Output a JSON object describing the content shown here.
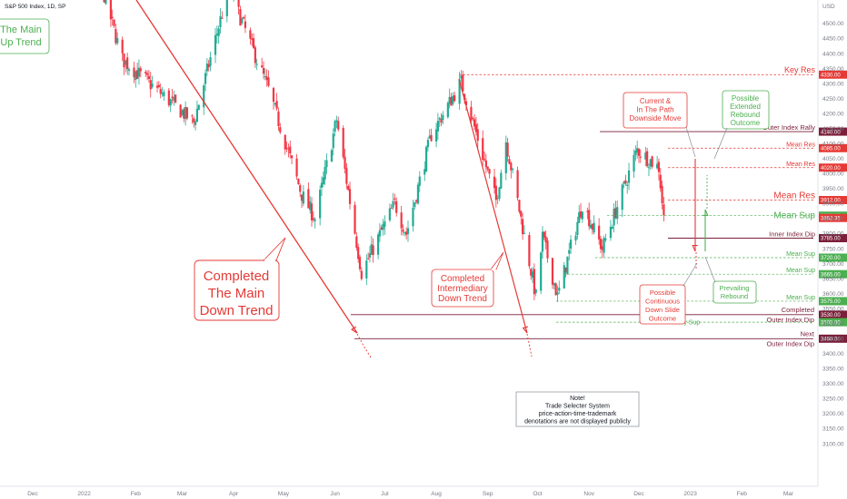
{
  "title": "S&P 500 Index, 1D, SP",
  "colors": {
    "up": "#22ab94",
    "down": "#f23645",
    "red": "#e53935",
    "green": "#4caf50",
    "maroon": "#7b1f3a",
    "grey": "#787b86"
  },
  "chart_data": {
    "type": "candlestick",
    "title": "S&P 500 Index, 1D, SP",
    "y_axis_label": "USD",
    "ylim": [
      3060,
      4620
    ],
    "grid": false,
    "yticks": [
      "4500.00",
      "4450.00",
      "4400.00",
      "4350.00",
      "4300.00",
      "4250.00",
      "4200.00",
      "4150.00",
      "4100.00",
      "4050.00",
      "4000.00",
      "3950.00",
      "3900.00",
      "3850.00",
      "3800.00",
      "3750.00",
      "3700.00",
      "3650.00",
      "3600.00",
      "3550.00",
      "3500.00",
      "3450.00",
      "3400.00",
      "3350.00",
      "3300.00",
      "3250.00",
      "3200.00",
      "3150.00",
      "3100.00"
    ],
    "xticks": [
      "Dec",
      "2022",
      "Feb",
      "Mar",
      "Apr",
      "May",
      "Jun",
      "Jul",
      "Aug",
      "Sep",
      "Oct",
      "Nov",
      "Dec",
      "2023",
      "Feb",
      "Mar"
    ],
    "price_anchors": [
      {
        "date": "2021-12-15",
        "close": 4640
      },
      {
        "date": "2022-01-03",
        "close": 4790
      },
      {
        "date": "2022-01-24",
        "close": 4380
      },
      {
        "date": "2022-02-24",
        "close": 4230
      },
      {
        "date": "2022-03-08",
        "close": 4170
      },
      {
        "date": "2022-03-29",
        "close": 4620
      },
      {
        "date": "2022-04-22",
        "close": 4280
      },
      {
        "date": "2022-05-12",
        "close": 3930
      },
      {
        "date": "2022-05-20",
        "close": 3850
      },
      {
        "date": "2022-06-02",
        "close": 4180
      },
      {
        "date": "2022-06-17",
        "close": 3670
      },
      {
        "date": "2022-07-07",
        "close": 3900
      },
      {
        "date": "2022-07-14",
        "close": 3800
      },
      {
        "date": "2022-07-29",
        "close": 4130
      },
      {
        "date": "2022-08-16",
        "close": 4305
      },
      {
        "date": "2022-09-06",
        "close": 3910
      },
      {
        "date": "2022-09-12",
        "close": 4110
      },
      {
        "date": "2022-09-30",
        "close": 3590
      },
      {
        "date": "2022-10-04",
        "close": 3790
      },
      {
        "date": "2022-10-13",
        "close": 3590
      },
      {
        "date": "2022-10-28",
        "close": 3900
      },
      {
        "date": "2022-11-09",
        "close": 3750
      },
      {
        "date": "2022-11-30",
        "close": 4080
      },
      {
        "date": "2022-12-13",
        "close": 4020
      },
      {
        "date": "2022-12-16",
        "close": 3852
      }
    ],
    "levels": [
      {
        "label": "Key Res",
        "value": "4330.00",
        "price": 4330,
        "style": "dashed",
        "color": "red"
      },
      {
        "label": "Outer Index Rally",
        "value": "4140.00",
        "price": 4140,
        "style": "solid",
        "color": "maroon"
      },
      {
        "label": "Mean Res",
        "value": "4085.00",
        "price": 4085,
        "style": "dashed",
        "color": "red"
      },
      {
        "label": "Mean Res",
        "value": "4020.00",
        "price": 4020,
        "style": "dashed",
        "color": "red"
      },
      {
        "label": "Mean Res",
        "value": "3912.00",
        "price": 3912,
        "style": "dashed",
        "color": "red"
      },
      {
        "label": "Mean Sup",
        "value": "3860.00",
        "price": 3860,
        "style": "dashed",
        "color": "green"
      },
      {
        "label": "",
        "value": "3852.35",
        "price": 3852.35,
        "style": "none",
        "color": "red"
      },
      {
        "label": "Inner Index Dip",
        "value": "3785.00",
        "price": 3785,
        "style": "solid",
        "color": "maroon"
      },
      {
        "label": "Mean Sup",
        "value": "3720.00",
        "price": 3720,
        "style": "dashed",
        "color": "green"
      },
      {
        "label": "Mean Sup",
        "value": "3665.00",
        "price": 3665,
        "style": "dashed",
        "color": "green"
      },
      {
        "label": "Mean Sup",
        "value": "3575.00",
        "price": 3575,
        "style": "dashed",
        "color": "green"
      },
      {
        "label": "Completed Outer Index Dip",
        "value": "3530.00",
        "price": 3530,
        "style": "solid",
        "color": "maroon"
      },
      {
        "label": "Key Sup",
        "value": "3505.00",
        "price": 3505,
        "style": "dashed",
        "color": "green"
      },
      {
        "label": "Next Outer Index Dip",
        "value": "3450.00",
        "price": 3450,
        "style": "solid",
        "color": "maroon"
      }
    ],
    "annotations": [
      {
        "text": "The Main Up Trend"
      },
      {
        "text": "Completed The Main Down Trend"
      },
      {
        "text": "Completed Intermediary Down Trend"
      },
      {
        "text": "Current & In The Path Downside Move"
      },
      {
        "text": "Possible Extended Rebound Outcome"
      },
      {
        "text": "Possible Continuous Down Slide Outcome"
      },
      {
        "text": "Prevailing Rebound"
      }
    ],
    "note": "Note! Trade Selecter System price-action-time-trademark denotations are not displayed publicly"
  }
}
